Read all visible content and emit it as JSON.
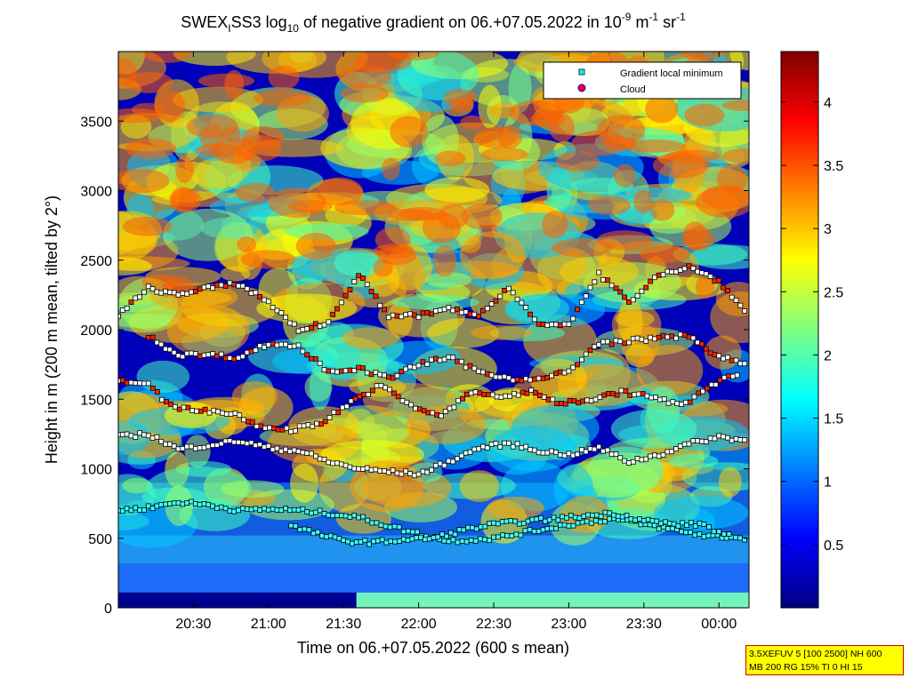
{
  "chart_data": {
    "type": "heatmap",
    "title": {
      "prefix": "SWEX",
      "prefix_sub": "I",
      "mid": "SS3 log",
      "log_sub": "10",
      "rest": " of negative gradient on 06.+07.05.2022 in 10",
      "exp1": "-9",
      "unit1": " m",
      "exp2": "-1",
      "unit2": " sr",
      "exp3": "-1"
    },
    "xlabel": "Time on 06.+07.05.2022 (600 s mean)",
    "ylabel": "Height in m (200 m mean, tilted by 2°)",
    "x_ticks": [
      "20:30",
      "21:00",
      "21:30",
      "22:00",
      "22:30",
      "23:00",
      "23:30",
      "00:00"
    ],
    "x_tick_hours": [
      20.5,
      21.0,
      21.5,
      22.0,
      22.5,
      23.0,
      23.5,
      24.0
    ],
    "xlim_hours": [
      20.0,
      24.2
    ],
    "y_ticks": [
      0,
      500,
      1000,
      1500,
      2000,
      2500,
      3000,
      3500
    ],
    "ylim": [
      0,
      4000
    ],
    "colorbar": {
      "ticks": [
        "0.5",
        "1",
        "1.5",
        "2",
        "2.5",
        "3",
        "3.5",
        "4"
      ],
      "tick_values": [
        0.5,
        1,
        1.5,
        2,
        2.5,
        3,
        3.5,
        4
      ],
      "range": [
        0,
        4.4
      ],
      "colormap": "jet"
    },
    "legend": {
      "placement": "top-right",
      "entries": [
        {
          "label": "Gradient local minimum",
          "marker": "square",
          "color": "#00ffff"
        },
        {
          "label": "Cloud",
          "marker": "circle",
          "color": "#ff0000"
        }
      ]
    },
    "gradient_minimum_layers": [
      {
        "name_hidden": true,
        "points": [
          [
            20.0,
            700
          ],
          [
            20.2,
            720
          ],
          [
            20.4,
            760
          ],
          [
            20.6,
            740
          ],
          [
            20.8,
            700
          ],
          [
            21.0,
            710
          ],
          [
            21.2,
            700
          ],
          [
            21.4,
            680
          ],
          [
            21.6,
            650
          ],
          [
            21.9,
            560
          ],
          [
            22.2,
            480
          ],
          [
            22.5,
            500
          ],
          [
            22.8,
            560
          ],
          [
            23.0,
            600
          ],
          [
            23.3,
            640
          ],
          [
            23.6,
            580
          ],
          [
            23.9,
            520
          ],
          [
            24.2,
            500
          ]
        ]
      },
      {
        "points": [
          [
            21.15,
            590
          ],
          [
            21.3,
            540
          ],
          [
            21.5,
            480
          ],
          [
            21.7,
            470
          ],
          [
            21.9,
            490
          ],
          [
            22.1,
            500
          ],
          [
            22.3,
            560
          ],
          [
            22.5,
            600
          ],
          [
            22.7,
            620
          ],
          [
            22.9,
            640
          ],
          [
            23.1,
            660
          ],
          [
            23.3,
            680
          ],
          [
            23.5,
            630
          ],
          [
            23.7,
            600
          ],
          [
            23.9,
            600
          ],
          [
            24.0,
            540
          ],
          [
            24.1,
            520
          ]
        ]
      },
      {
        "points": [
          [
            20.0,
            1230
          ],
          [
            20.2,
            1250
          ],
          [
            20.4,
            1140
          ],
          [
            20.6,
            1170
          ],
          [
            20.8,
            1200
          ],
          [
            21.0,
            1150
          ],
          [
            21.2,
            1130
          ],
          [
            21.4,
            1050
          ],
          [
            21.6,
            1000
          ],
          [
            21.8,
            980
          ],
          [
            22.0,
            960
          ],
          [
            22.2,
            1050
          ],
          [
            22.4,
            1150
          ],
          [
            22.6,
            1180
          ],
          [
            22.8,
            1130
          ],
          [
            23.0,
            1100
          ],
          [
            23.2,
            1150
          ],
          [
            23.4,
            1050
          ],
          [
            23.6,
            1100
          ],
          [
            23.8,
            1180
          ],
          [
            24.0,
            1230
          ],
          [
            24.2,
            1200
          ]
        ]
      },
      {
        "points": [
          [
            20.0,
            1640
          ],
          [
            20.2,
            1600
          ],
          [
            20.35,
            1450
          ],
          [
            20.55,
            1420
          ],
          [
            20.75,
            1400
          ],
          [
            20.95,
            1300
          ],
          [
            21.15,
            1280
          ],
          [
            21.35,
            1330
          ],
          [
            21.55,
            1480
          ],
          [
            21.75,
            1600
          ],
          [
            21.95,
            1450
          ],
          [
            22.15,
            1380
          ],
          [
            22.35,
            1550
          ],
          [
            22.55,
            1520
          ],
          [
            22.75,
            1550
          ],
          [
            22.95,
            1470
          ],
          [
            23.15,
            1500
          ],
          [
            23.35,
            1550
          ],
          [
            23.55,
            1520
          ],
          [
            23.75,
            1450
          ],
          [
            23.95,
            1600
          ],
          [
            24.15,
            1700
          ]
        ]
      },
      {
        "points": [
          [
            20.2,
            1950
          ],
          [
            20.4,
            1820
          ],
          [
            20.6,
            1820
          ],
          [
            20.8,
            1800
          ],
          [
            21.0,
            1900
          ],
          [
            21.2,
            1880
          ],
          [
            21.4,
            1700
          ],
          [
            21.6,
            1720
          ],
          [
            21.8,
            1650
          ],
          [
            22.0,
            1750
          ],
          [
            22.2,
            1800
          ],
          [
            22.4,
            1700
          ],
          [
            22.6,
            1650
          ],
          [
            22.8,
            1640
          ],
          [
            23.0,
            1700
          ],
          [
            23.2,
            1900
          ],
          [
            23.4,
            1920
          ],
          [
            23.6,
            1940
          ],
          [
            23.8,
            1960
          ],
          [
            24.0,
            1800
          ],
          [
            24.2,
            1750
          ]
        ]
      },
      {
        "points": [
          [
            20.0,
            2100
          ],
          [
            20.2,
            2300
          ],
          [
            20.4,
            2250
          ],
          [
            20.6,
            2300
          ],
          [
            20.8,
            2330
          ],
          [
            21.0,
            2200
          ],
          [
            21.2,
            2000
          ],
          [
            21.4,
            2050
          ],
          [
            21.6,
            2400
          ],
          [
            21.8,
            2100
          ],
          [
            22.0,
            2100
          ],
          [
            22.2,
            2150
          ],
          [
            22.4,
            2100
          ],
          [
            22.6,
            2300
          ],
          [
            22.8,
            2050
          ],
          [
            23.0,
            2030
          ],
          [
            23.2,
            2400
          ],
          [
            23.4,
            2200
          ],
          [
            23.6,
            2400
          ],
          [
            23.8,
            2450
          ],
          [
            24.0,
            2350
          ],
          [
            24.2,
            2100
          ]
        ]
      }
    ],
    "info_box": {
      "line1": "3.5XEFUV 5 [100 2500] NH 600",
      "line2": "MB 200 RG 15% TI 0 HI 15"
    }
  }
}
